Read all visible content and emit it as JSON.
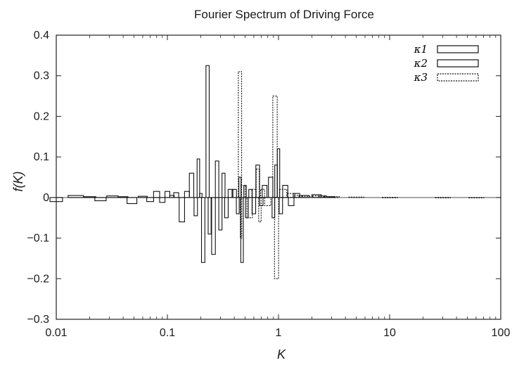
{
  "chart_data": {
    "type": "bar",
    "title": "Fourier Spectrum of Driving Force",
    "xlabel": "K",
    "ylabel": "f(K)",
    "xscale": "log",
    "xlim": [
      0.01,
      100
    ],
    "ylim": [
      -0.3,
      0.4
    ],
    "xticks": [
      {
        "value": 0.01,
        "label": "0.01"
      },
      {
        "value": 0.1,
        "label": "0.1"
      },
      {
        "value": 1,
        "label": "1"
      },
      {
        "value": 10,
        "label": "10"
      },
      {
        "value": 100,
        "label": "100"
      }
    ],
    "yticks": [
      {
        "value": -0.3,
        "label": "−0.3"
      },
      {
        "value": -0.2,
        "label": "−0.2"
      },
      {
        "value": -0.1,
        "label": "−0.1"
      },
      {
        "value": 0,
        "label": "0"
      },
      {
        "value": 0.1,
        "label": "0.1"
      },
      {
        "value": 0.2,
        "label": "0.2"
      },
      {
        "value": 0.3,
        "label": "0.3"
      },
      {
        "value": 0.4,
        "label": "0.4"
      }
    ],
    "grid": false,
    "legend_position": "top-right",
    "series": [
      {
        "name": "κ1",
        "style": "solid",
        "points": [
          [
            0.4,
            0.02
          ],
          [
            0.43,
            -0.04
          ],
          [
            0.45,
            0.05
          ],
          [
            0.47,
            -0.16
          ],
          [
            0.5,
            0.03
          ],
          [
            0.52,
            -0.05
          ],
          [
            0.56,
            0.02
          ],
          [
            0.6,
            -0.04
          ],
          [
            0.65,
            0.08
          ],
          [
            0.7,
            -0.02
          ],
          [
            0.75,
            0.03
          ],
          [
            0.85,
            0.05
          ],
          [
            0.9,
            -0.05
          ],
          [
            0.95,
            0.08
          ],
          [
            1.0,
            0.12
          ],
          [
            1.05,
            -0.04
          ],
          [
            1.15,
            0.03
          ],
          [
            1.3,
            -0.02
          ],
          [
            1.45,
            0.01
          ],
          [
            1.7,
            0.005
          ],
          [
            2.2,
            0.007
          ],
          [
            2.5,
            0.004
          ],
          [
            3,
            0.002
          ]
        ]
      },
      {
        "name": "κ2",
        "style": "solid",
        "points": [
          [
            0.01,
            -0.01
          ],
          [
            0.015,
            0.005
          ],
          [
            0.02,
            0.002
          ],
          [
            0.025,
            -0.008
          ],
          [
            0.032,
            0.004
          ],
          [
            0.04,
            0.002
          ],
          [
            0.048,
            -0.015
          ],
          [
            0.06,
            0.003
          ],
          [
            0.07,
            -0.01
          ],
          [
            0.08,
            0.015
          ],
          [
            0.09,
            -0.012
          ],
          [
            0.1,
            0.015
          ],
          [
            0.11,
            0.005
          ],
          [
            0.12,
            0.012
          ],
          [
            0.135,
            -0.06
          ],
          [
            0.15,
            0.015
          ],
          [
            0.165,
            0.06
          ],
          [
            0.18,
            -0.045
          ],
          [
            0.19,
            0.095
          ],
          [
            0.2,
            0.01
          ],
          [
            0.21,
            -0.16
          ],
          [
            0.23,
            0.325
          ],
          [
            0.24,
            -0.09
          ],
          [
            0.26,
            -0.14
          ],
          [
            0.28,
            0.09
          ],
          [
            0.3,
            -0.08
          ],
          [
            0.32,
            0.06
          ],
          [
            0.34,
            -0.05
          ],
          [
            0.37,
            0.02
          ]
        ]
      },
      {
        "name": "κ3",
        "style": "dashed",
        "points": [
          [
            0.45,
            0.31
          ],
          [
            0.46,
            -0.1
          ],
          [
            0.48,
            0.03
          ],
          [
            0.55,
            -0.05
          ],
          [
            0.6,
            0.02
          ],
          [
            0.65,
            0.07
          ],
          [
            0.68,
            -0.06
          ],
          [
            0.72,
            0.02
          ],
          [
            0.8,
            -0.02
          ],
          [
            0.93,
            0.25
          ],
          [
            0.96,
            -0.2
          ],
          [
            1.1,
            0.02
          ],
          [
            1.3,
            0.01
          ],
          [
            1.5,
            0.005
          ],
          [
            1.8,
            0.003
          ],
          [
            2.3,
            0.004
          ],
          [
            3,
            0.002
          ],
          [
            5,
            0.001
          ],
          [
            10,
            0.0005
          ],
          [
            30,
            0.0003
          ],
          [
            60,
            0.0002
          ]
        ]
      }
    ]
  }
}
